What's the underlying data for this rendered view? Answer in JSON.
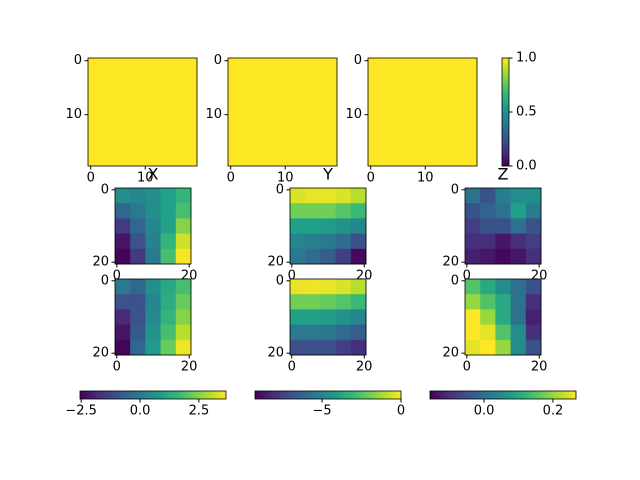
{
  "chart_data": [
    {
      "type": "heatmap",
      "values": [
        [
          1,
          1
        ],
        [
          1,
          1
        ]
      ],
      "clim": [
        0,
        1
      ],
      "xlim": [
        -0.5,
        19.5
      ],
      "ylim": [
        19.5,
        -0.5
      ],
      "xticks": [
        0,
        10
      ],
      "yticks": [
        0,
        10
      ]
    },
    {
      "type": "heatmap",
      "values": [
        [
          1,
          1
        ],
        [
          1,
          1
        ]
      ],
      "clim": [
        0,
        1
      ],
      "xlim": [
        -0.5,
        19.5
      ],
      "ylim": [
        19.5,
        -0.5
      ],
      "xticks": [
        0,
        10
      ],
      "yticks": [
        0,
        10
      ]
    },
    {
      "type": "heatmap",
      "values": [
        [
          1,
          1
        ],
        [
          1,
          1
        ]
      ],
      "clim": [
        0,
        1
      ],
      "xlim": [
        -0.5,
        19.5
      ],
      "ylim": [
        19.5,
        -0.5
      ],
      "xticks": [
        0,
        10
      ],
      "yticks": [
        0,
        10
      ]
    },
    {
      "type": "colorbar",
      "orientation": "vertical",
      "ylim": [
        0,
        1
      ],
      "yticks": [
        {
          "value": 0,
          "label": "0.0"
        },
        {
          "value": 0.5,
          "label": "0.5"
        },
        {
          "value": 1,
          "label": "1.0"
        }
      ]
    },
    {
      "type": "heatmap",
      "title": "X",
      "values": [
        [
          0.5,
          0.3,
          0.5,
          1.0,
          1.5
        ],
        [
          -0.5,
          0,
          0.5,
          1.0,
          1.8
        ],
        [
          -1.5,
          -0.5,
          0.3,
          1.0,
          2.5
        ],
        [
          -2.2,
          -1.0,
          0.2,
          1.5,
          3.2
        ],
        [
          -2.5,
          -1.5,
          0,
          1.8,
          3.6
        ]
      ],
      "clim": [
        -2.55,
        3.65
      ],
      "xlim": [
        -0.5,
        20.5
      ],
      "ylim": [
        20.5,
        -0.5
      ],
      "xticks": [
        0,
        20
      ],
      "yticks": [
        0,
        20
      ]
    },
    {
      "type": "heatmap",
      "title": "Y",
      "values": [
        [
          -0.5,
          -0.3,
          -0.3,
          -0.5,
          -1
        ],
        [
          -2,
          -2,
          -2,
          -2.5,
          -3
        ],
        [
          -4,
          -4,
          -4.2,
          -4.5,
          -5
        ],
        [
          -5,
          -5.2,
          -5.5,
          -6,
          -7
        ],
        [
          -5.5,
          -6,
          -6.5,
          -7.5,
          -9
        ]
      ],
      "clim": [
        -9.25,
        0
      ],
      "xlim": [
        -0.5,
        20.5
      ],
      "ylim": [
        20.5,
        -0.5
      ],
      "xticks": [
        0,
        20
      ],
      "yticks": [
        0,
        20
      ]
    },
    {
      "type": "heatmap",
      "title": "Z",
      "values": [
        [
          0,
          -0.05,
          0.02,
          0.05,
          0.05
        ],
        [
          -0.05,
          -0.02,
          0.0,
          0.08,
          0.02
        ],
        [
          -0.08,
          -0.05,
          -0.05,
          0,
          -0.05
        ],
        [
          -0.1,
          -0.1,
          -0.13,
          -0.1,
          -0.08
        ],
        [
          -0.12,
          -0.13,
          -0.15,
          -0.13,
          -0.1
        ]
      ],
      "clim": [
        -0.157,
        0.267
      ],
      "xlim": [
        -0.5,
        20.5
      ],
      "ylim": [
        20.5,
        -0.5
      ],
      "xticks": [
        0,
        20
      ],
      "yticks": [
        0,
        20
      ]
    },
    {
      "type": "heatmap",
      "values": [
        [
          0,
          -0.5,
          0.5,
          1.2,
          1.8
        ],
        [
          -1,
          -1,
          0.3,
          1.3,
          2.2
        ],
        [
          -1.8,
          -1,
          0.4,
          1.5,
          2.5
        ],
        [
          -2.2,
          -0.8,
          0.6,
          1.8,
          3.0
        ],
        [
          -2.5,
          -0.5,
          0.8,
          2.2,
          3.5
        ]
      ],
      "clim": [
        -2.55,
        3.65
      ],
      "xlim": [
        -0.5,
        20.5
      ],
      "ylim": [
        20.5,
        -0.5
      ],
      "xticks": [
        0,
        20
      ],
      "yticks": [
        0,
        20
      ]
    },
    {
      "type": "heatmap",
      "values": [
        [
          -0.3,
          -0.2,
          -0.3,
          -0.5,
          -1
        ],
        [
          -2,
          -2,
          -2.2,
          -2.5,
          -3
        ],
        [
          -4,
          -4,
          -4.2,
          -4.5,
          -5
        ],
        [
          -5.5,
          -5.5,
          -5.5,
          -6,
          -6.5
        ],
        [
          -7,
          -7,
          -7,
          -7.5,
          -8
        ]
      ],
      "clim": [
        -9.25,
        0
      ],
      "xlim": [
        -0.5,
        20.5
      ],
      "ylim": [
        20.5,
        -0.5
      ],
      "xticks": [
        0,
        20
      ],
      "yticks": [
        0,
        20
      ]
    },
    {
      "type": "heatmap",
      "values": [
        [
          0.15,
          0.1,
          0.05,
          0,
          -0.05
        ],
        [
          0.2,
          0.15,
          0.1,
          0.0,
          -0.1
        ],
        [
          0.27,
          0.2,
          0.1,
          0,
          -0.12
        ],
        [
          0.27,
          0.25,
          0.15,
          0.05,
          -0.1
        ],
        [
          0.25,
          0.27,
          0.2,
          0.05,
          -0.05
        ]
      ],
      "clim": [
        -0.157,
        0.267
      ],
      "xlim": [
        -0.5,
        20.5
      ],
      "ylim": [
        20.5,
        -0.5
      ],
      "xticks": [
        0,
        20
      ],
      "yticks": [
        0,
        20
      ]
    },
    {
      "type": "colorbar",
      "orientation": "horizontal",
      "xlim": [
        -2.55,
        3.65
      ],
      "xticks": [
        {
          "value": -2.5,
          "label": "−2.5"
        },
        {
          "value": 0,
          "label": "0.0"
        },
        {
          "value": 2.5,
          "label": "2.5"
        }
      ]
    },
    {
      "type": "colorbar",
      "orientation": "horizontal",
      "xlim": [
        -9.25,
        0
      ],
      "xticks": [
        {
          "value": -5,
          "label": "−5"
        },
        0
      ]
    },
    {
      "type": "colorbar",
      "orientation": "horizontal",
      "xlim": [
        -0.157,
        0.267
      ],
      "xticks": [
        {
          "value": 0,
          "label": "0.0"
        },
        {
          "value": 0.2,
          "label": "0.2"
        }
      ]
    }
  ]
}
